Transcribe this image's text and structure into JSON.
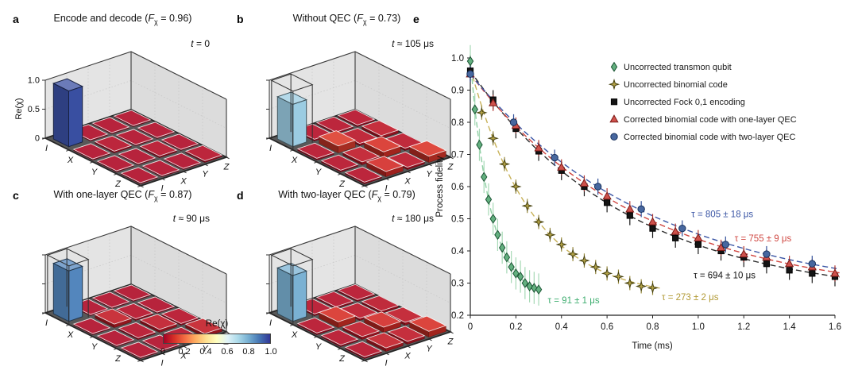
{
  "figure": {
    "panel_letters": [
      "a",
      "b",
      "c",
      "d",
      "e"
    ],
    "background": "#ffffff"
  },
  "shared": {
    "f_symbol": "F",
    "f_subscript": "χ",
    "t_symbol": "t"
  },
  "colorbar": {
    "label": "Re(χ)",
    "ticks": [
      "0",
      "0.2",
      "0.4",
      "0.6",
      "0.8",
      "1.0"
    ],
    "colormap": [
      [
        0.0,
        "#a50026"
      ],
      [
        0.1,
        "#d73027"
      ],
      [
        0.2,
        "#f46d43"
      ],
      [
        0.3,
        "#fdae61"
      ],
      [
        0.4,
        "#fee090"
      ],
      [
        0.5,
        "#ffffbf"
      ],
      [
        0.6,
        "#e0f3f8"
      ],
      [
        0.7,
        "#abd9e9"
      ],
      [
        0.8,
        "#74add1"
      ],
      [
        0.9,
        "#4575b4"
      ],
      [
        1.0,
        "#313695"
      ]
    ]
  },
  "chart_data": [
    {
      "id": "a",
      "type": "bar3d",
      "title_prefix": "Encode and decode (",
      "title_suffix": " = 0.96)",
      "fidelity": 0.96,
      "time_text": " = 0",
      "x_labels": [
        "I",
        "X",
        "Y",
        "Z"
      ],
      "y_labels": [
        "I",
        "X",
        "Y",
        "Z"
      ],
      "z_label": "Re(χ)",
      "z_ticks": [
        "1.0",
        "0.5",
        "0"
      ],
      "zlim": [
        0,
        1
      ],
      "wireframe": false,
      "matrix": [
        [
          0.96,
          0.02,
          0.02,
          0.02
        ],
        [
          0.02,
          0.03,
          0.02,
          0.02
        ],
        [
          0.02,
          0.02,
          0.03,
          0.02
        ],
        [
          0.02,
          0.02,
          0.02,
          0.03
        ]
      ]
    },
    {
      "id": "b",
      "type": "bar3d",
      "title_prefix": "Without QEC (",
      "title_suffix": " = 0.73)",
      "fidelity": 0.73,
      "time_text": " ≈ 105 μs",
      "x_labels": [
        "I",
        "X",
        "Y",
        "Z"
      ],
      "y_labels": [
        "I",
        "X",
        "Y",
        "Z"
      ],
      "zlim": [
        0,
        1
      ],
      "wireframe": true,
      "matrix": [
        [
          0.73,
          0.03,
          0.03,
          0.03
        ],
        [
          0.03,
          0.12,
          0.04,
          0.05
        ],
        [
          0.03,
          0.05,
          0.1,
          0.04
        ],
        [
          0.03,
          0.09,
          0.04,
          0.11
        ]
      ]
    },
    {
      "id": "c",
      "type": "bar3d",
      "title_prefix": "With one-layer QEC (",
      "title_suffix": " = 0.87)",
      "fidelity": 0.87,
      "time_text": " ≈ 90 μs",
      "x_labels": [
        "I",
        "X",
        "Y",
        "Z"
      ],
      "y_labels": [
        "I",
        "X",
        "Y",
        "Z"
      ],
      "zlim": [
        0,
        1
      ],
      "wireframe": true,
      "matrix": [
        [
          0.87,
          0.02,
          0.02,
          0.02
        ],
        [
          0.02,
          0.06,
          0.03,
          0.02
        ],
        [
          0.02,
          0.03,
          0.05,
          0.03
        ],
        [
          0.02,
          0.02,
          0.03,
          0.06
        ]
      ]
    },
    {
      "id": "d",
      "type": "bar3d",
      "title_prefix": "With two-layer QEC (",
      "title_suffix": " = 0.79)",
      "fidelity": 0.79,
      "time_text": " ≈ 180 μs",
      "x_labels": [
        "I",
        "X",
        "Y",
        "Z"
      ],
      "y_labels": [
        "I",
        "X",
        "Y",
        "Z"
      ],
      "zlim": [
        0,
        1
      ],
      "wireframe": true,
      "matrix": [
        [
          0.79,
          0.03,
          0.03,
          0.03
        ],
        [
          0.03,
          0.1,
          0.04,
          0.04
        ],
        [
          0.03,
          0.05,
          0.09,
          0.05
        ],
        [
          0.03,
          0.06,
          0.05,
          0.1
        ]
      ]
    },
    {
      "id": "e",
      "type": "line",
      "xlabel": "Time (ms)",
      "ylabel": "Process fidelity",
      "xlim": [
        0,
        1.6
      ],
      "ylim": [
        0.2,
        1.0
      ],
      "xticks": [
        "0",
        "0.2",
        "0.4",
        "0.6",
        "0.8",
        "1.0",
        "1.2",
        "1.4",
        "1.6"
      ],
      "yticks": [
        "0.2",
        "0.3",
        "0.4",
        "0.5",
        "0.6",
        "0.7",
        "0.8",
        "0.9",
        "1.0"
      ],
      "grid": false,
      "legend_position": "top-right",
      "series": [
        {
          "name": "Uncorrected transmon qubit",
          "marker": "diamond",
          "color": "#63b07f",
          "marker_stroke": "#1b5434",
          "line_color": "#8ecfa3",
          "err_color": "#a6d9b5",
          "err": 0.05,
          "x": [
            0,
            0.02,
            0.04,
            0.06,
            0.08,
            0.1,
            0.12,
            0.14,
            0.16,
            0.18,
            0.2,
            0.22,
            0.24,
            0.26,
            0.28,
            0.3
          ],
          "y": [
            0.99,
            0.84,
            0.73,
            0.63,
            0.56,
            0.5,
            0.45,
            0.41,
            0.38,
            0.35,
            0.33,
            0.32,
            0.3,
            0.29,
            0.285,
            0.28
          ],
          "fit": {
            "amplitude": 0.74,
            "tau_ms": 0.091,
            "offset": 0.25,
            "range": [
              0,
              0.33
            ]
          },
          "annotation": {
            "text": "τ = 91 ± 1 μs",
            "x": 0.34,
            "y": 0.237,
            "color": "#3fae70"
          }
        },
        {
          "name": "Uncorrected binomial code",
          "marker": "star4",
          "color": "#b4a348",
          "marker_stroke": "#45400f",
          "line_color": "#c8b25a",
          "err_color": "#97893a",
          "err": 0.022,
          "x": [
            0.05,
            0.1,
            0.15,
            0.2,
            0.25,
            0.3,
            0.35,
            0.4,
            0.45,
            0.5,
            0.55,
            0.6,
            0.65,
            0.7,
            0.75,
            0.8
          ],
          "y": [
            0.83,
            0.75,
            0.67,
            0.6,
            0.54,
            0.49,
            0.45,
            0.42,
            0.39,
            0.37,
            0.35,
            0.33,
            0.32,
            0.3,
            0.29,
            0.285
          ],
          "fit": {
            "amplitude": 0.72,
            "tau_ms": 0.273,
            "offset": 0.25,
            "range": [
              0,
              0.84
            ]
          },
          "annotation": {
            "text": "τ = 273 ± 2 μs",
            "x": 0.84,
            "y": 0.247,
            "color": "#b29a35"
          }
        },
        {
          "name": "Uncorrected Fock 0,1 encoding",
          "marker": "square",
          "color": "#141414",
          "marker_stroke": "#000000",
          "line_color": "#2a2a2a",
          "err_color": "#1a1a1a",
          "err": 0.03,
          "x": [
            0,
            0.1,
            0.2,
            0.3,
            0.4,
            0.5,
            0.6,
            0.7,
            0.8,
            0.9,
            1.0,
            1.1,
            1.2,
            1.3,
            1.4,
            1.5,
            1.6
          ],
          "y": [
            0.96,
            0.87,
            0.78,
            0.71,
            0.65,
            0.6,
            0.55,
            0.51,
            0.47,
            0.44,
            0.42,
            0.4,
            0.38,
            0.36,
            0.34,
            0.33,
            0.32
          ],
          "fit": {
            "amplitude": 0.71,
            "tau_ms": 0.694,
            "offset": 0.25,
            "range": [
              0,
              1.62
            ]
          },
          "annotation": {
            "text": "τ = 694 ± 10 μs",
            "x": 0.98,
            "y": 0.315,
            "color": "#111111"
          }
        },
        {
          "name": "Corrected binomial code with one-layer QEC",
          "marker": "triangle",
          "color": "#cf524c",
          "marker_stroke": "#7c1a17",
          "line_color": "#d0453f",
          "err_color": "#b23a35",
          "err": 0.025,
          "x": [
            0,
            0.1,
            0.2,
            0.3,
            0.4,
            0.5,
            0.6,
            0.7,
            0.8,
            0.9,
            1.0,
            1.1,
            1.2,
            1.3,
            1.4,
            1.5,
            1.6
          ],
          "y": [
            0.95,
            0.86,
            0.79,
            0.72,
            0.66,
            0.61,
            0.57,
            0.53,
            0.49,
            0.46,
            0.44,
            0.41,
            0.39,
            0.38,
            0.36,
            0.35,
            0.33
          ],
          "fit": {
            "amplitude": 0.7,
            "tau_ms": 0.755,
            "offset": 0.25,
            "range": [
              0,
              1.62
            ]
          },
          "annotation": {
            "text": "τ = 755 ± 9 μs",
            "x": 1.16,
            "y": 0.43,
            "color": "#d04a44"
          }
        },
        {
          "name": "Corrected binomial code with two-layer QEC",
          "marker": "circle",
          "color": "#47679f",
          "marker_stroke": "#17305c",
          "line_color": "#3b56a5",
          "err_color": "#32509a",
          "err": 0.025,
          "x": [
            0,
            0.19,
            0.37,
            0.56,
            0.75,
            0.93,
            1.12,
            1.3,
            1.5
          ],
          "y": [
            0.95,
            0.8,
            0.69,
            0.6,
            0.53,
            0.47,
            0.42,
            0.39,
            0.36
          ],
          "fit": {
            "amplitude": 0.7,
            "tau_ms": 0.805,
            "offset": 0.25,
            "range": [
              0,
              1.62
            ]
          },
          "annotation": {
            "text": "τ = 805 ± 18 μs",
            "x": 0.97,
            "y": 0.505,
            "color": "#3b56a5"
          }
        }
      ]
    }
  ]
}
